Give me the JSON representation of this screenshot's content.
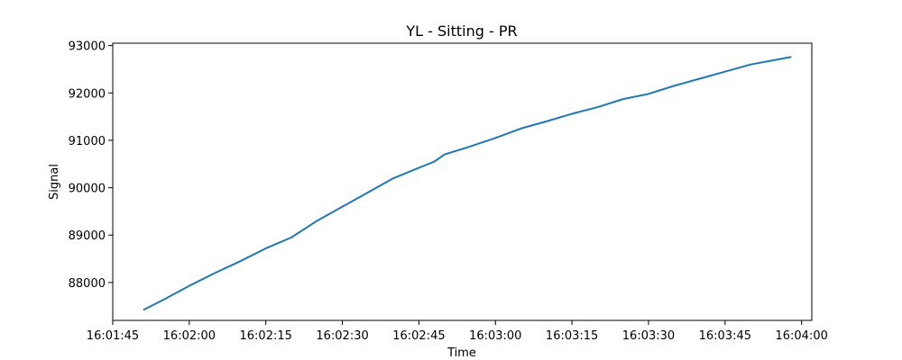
{
  "chart_data": {
    "type": "line",
    "title": "YL - Sitting - PR",
    "xlabel": "Time",
    "ylabel": "Signal",
    "xlim": [
      "16:01:45",
      "16:04:02"
    ],
    "ylim": [
      87200,
      93050
    ],
    "grid": false,
    "x_ticks": [
      "16:01:45",
      "16:02:00",
      "16:02:15",
      "16:02:30",
      "16:02:45",
      "16:03:00",
      "16:03:15",
      "16:03:30",
      "16:03:45",
      "16:04:00"
    ],
    "y_ticks": [
      88000,
      89000,
      90000,
      91000,
      92000,
      93000
    ],
    "series": [
      {
        "color": "#1f77b4",
        "x": [
          "16:01:51",
          "16:01:55",
          "16:02:00",
          "16:02:05",
          "16:02:10",
          "16:02:15",
          "16:02:20",
          "16:02:25",
          "16:02:30",
          "16:02:35",
          "16:02:40",
          "16:02:45",
          "16:02:48",
          "16:02:50",
          "16:02:55",
          "16:03:00",
          "16:03:05",
          "16:03:10",
          "16:03:15",
          "16:03:20",
          "16:03:25",
          "16:03:30",
          "16:03:35",
          "16:03:40",
          "16:03:45",
          "16:03:50",
          "16:03:58"
        ],
        "y": [
          87420,
          87640,
          87930,
          88200,
          88450,
          88720,
          88950,
          89300,
          89600,
          89900,
          90200,
          90420,
          90550,
          90700,
          90870,
          91050,
          91250,
          91400,
          91560,
          91700,
          91870,
          91980,
          92150,
          92300,
          92450,
          92600,
          92760
        ]
      }
    ]
  }
}
